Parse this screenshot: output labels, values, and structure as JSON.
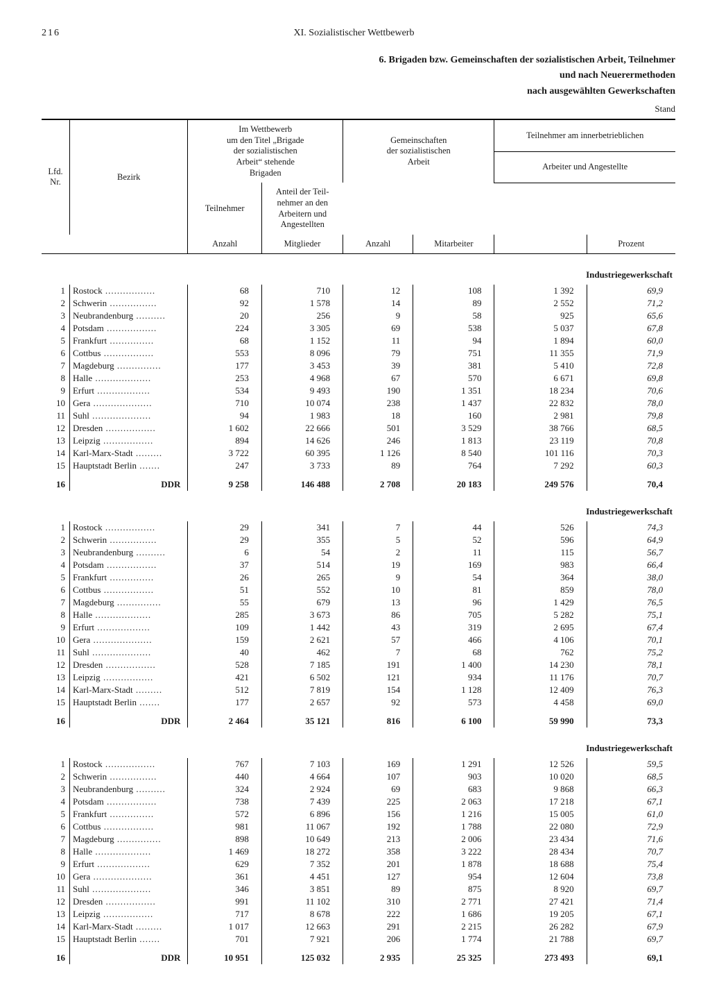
{
  "page_number": "216",
  "chapter": "XI. Sozialistischer Wettbewerb",
  "title_lines": [
    "6. Brigaden bzw. Gemeinschaften der sozialistischen Arbeit, Teilnehmer",
    "und nach Neuerermethoden",
    "nach ausgewählten Gewerkschaften"
  ],
  "stand_label": "Stand",
  "headers": {
    "lfd_nr": "Lfd.\nNr.",
    "bezirk": "Bezirk",
    "wettbewerb": "Im Wettbewerb\num den Titel „Brigade\nder sozialistischen\nArbeit“ stehende\nBrigaden",
    "gemeinschaften": "Gemeinschaften\nder sozialistischen\nArbeit",
    "teilnehmer_top": "Teilnehmer am innerbetrieblichen",
    "arb_ang": "Arbeiter und Angestellte",
    "teilnehmer": "Teilnehmer",
    "anteil": "Anteil der Teil-\nnehmer an den\nArbeitern und\nAngestellten",
    "anzahl": "Anzahl",
    "mitglieder": "Mitglieder",
    "mitarbeiter": "Mitarbeiter",
    "prozent": "Prozent"
  },
  "section_label": "Industriegewerkschaft",
  "ddr_label": "DDR",
  "bezirke": [
    "Rostock",
    "Schwerin",
    "Neubrandenburg",
    "Potsdam",
    "Frankfurt",
    "Cottbus",
    "Magdeburg",
    "Halle",
    "Erfurt",
    "Gera",
    "Suhl",
    "Dresden",
    "Leipzig",
    "Karl-Marx-Stadt",
    "Hauptstadt Berlin"
  ],
  "sections": [
    {
      "rows": [
        [
          "68",
          "710",
          "12",
          "108",
          "1 392",
          "69,9"
        ],
        [
          "92",
          "1 578",
          "14",
          "89",
          "2 552",
          "71,2"
        ],
        [
          "20",
          "256",
          "9",
          "58",
          "925",
          "65,6"
        ],
        [
          "224",
          "3 305",
          "69",
          "538",
          "5 037",
          "67,8"
        ],
        [
          "68",
          "1 152",
          "11",
          "94",
          "1 894",
          "60,0"
        ],
        [
          "553",
          "8 096",
          "79",
          "751",
          "11 355",
          "71,9"
        ],
        [
          "177",
          "3 453",
          "39",
          "381",
          "5 410",
          "72,8"
        ],
        [
          "253",
          "4 968",
          "67",
          "570",
          "6 671",
          "69,8"
        ],
        [
          "534",
          "9 493",
          "190",
          "1 351",
          "18 234",
          "70,6"
        ],
        [
          "710",
          "10 074",
          "238",
          "1 437",
          "22 832",
          "78,0"
        ],
        [
          "94",
          "1 983",
          "18",
          "160",
          "2 981",
          "79,8"
        ],
        [
          "1 602",
          "22 666",
          "501",
          "3 529",
          "38 766",
          "68,5"
        ],
        [
          "894",
          "14 626",
          "246",
          "1 813",
          "23 119",
          "70,8"
        ],
        [
          "3 722",
          "60 395",
          "1 126",
          "8 540",
          "101 116",
          "70,3"
        ],
        [
          "247",
          "3 733",
          "89",
          "764",
          "7 292",
          "60,3"
        ]
      ],
      "ddr": [
        "9 258",
        "146 488",
        "2 708",
        "20 183",
        "249 576",
        "70,4"
      ]
    },
    {
      "rows": [
        [
          "29",
          "341",
          "7",
          "44",
          "526",
          "74,3"
        ],
        [
          "29",
          "355",
          "5",
          "52",
          "596",
          "64,9"
        ],
        [
          "6",
          "54",
          "2",
          "11",
          "115",
          "56,7"
        ],
        [
          "37",
          "514",
          "19",
          "169",
          "983",
          "66,4"
        ],
        [
          "26",
          "265",
          "9",
          "54",
          "364",
          "38,0"
        ],
        [
          "51",
          "552",
          "10",
          "81",
          "859",
          "78,0"
        ],
        [
          "55",
          "679",
          "13",
          "96",
          "1 429",
          "76,5"
        ],
        [
          "285",
          "3 673",
          "86",
          "705",
          "5 282",
          "75,1"
        ],
        [
          "109",
          "1 442",
          "43",
          "319",
          "2 695",
          "67,4"
        ],
        [
          "159",
          "2 621",
          "57",
          "466",
          "4 106",
          "70,1"
        ],
        [
          "40",
          "462",
          "7",
          "68",
          "762",
          "75,2"
        ],
        [
          "528",
          "7 185",
          "191",
          "1 400",
          "14 230",
          "78,1"
        ],
        [
          "421",
          "6 502",
          "121",
          "934",
          "11 176",
          "70,7"
        ],
        [
          "512",
          "7 819",
          "154",
          "1 128",
          "12 409",
          "76,3"
        ],
        [
          "177",
          "2 657",
          "92",
          "573",
          "4 458",
          "69,0"
        ]
      ],
      "ddr": [
        "2 464",
        "35 121",
        "816",
        "6 100",
        "59 990",
        "73,3"
      ]
    },
    {
      "rows": [
        [
          "767",
          "7 103",
          "169",
          "1 291",
          "12 526",
          "59,5"
        ],
        [
          "440",
          "4 664",
          "107",
          "903",
          "10 020",
          "68,5"
        ],
        [
          "324",
          "2 924",
          "69",
          "683",
          "9 868",
          "66,3"
        ],
        [
          "738",
          "7 439",
          "225",
          "2 063",
          "17 218",
          "67,1"
        ],
        [
          "572",
          "6 896",
          "156",
          "1 216",
          "15 005",
          "61,0"
        ],
        [
          "981",
          "11 067",
          "192",
          "1 788",
          "22 080",
          "72,9"
        ],
        [
          "898",
          "10 649",
          "213",
          "2 006",
          "23 434",
          "71,6"
        ],
        [
          "1 469",
          "18 272",
          "358",
          "3 222",
          "28 434",
          "70,7"
        ],
        [
          "629",
          "7 352",
          "201",
          "1 878",
          "18 688",
          "75,4"
        ],
        [
          "361",
          "4 451",
          "127",
          "954",
          "12 604",
          "73,8"
        ],
        [
          "346",
          "3 851",
          "89",
          "875",
          "8 920",
          "69,7"
        ],
        [
          "991",
          "11 102",
          "310",
          "2 771",
          "27 421",
          "71,4"
        ],
        [
          "717",
          "8 678",
          "222",
          "1 686",
          "19 205",
          "67,1"
        ],
        [
          "1 017",
          "12 663",
          "291",
          "2 215",
          "26 282",
          "67,9"
        ],
        [
          "701",
          "7 921",
          "206",
          "1 774",
          "21 788",
          "69,7"
        ]
      ],
      "ddr": [
        "10 951",
        "125 032",
        "2 935",
        "25 325",
        "273 493",
        "69,1"
      ]
    }
  ],
  "style": {
    "font_family": "Times New Roman, serif",
    "background": "#ffffff",
    "text_color": "#1a1a1a",
    "rule_thick": 2,
    "rule_thin": 1
  }
}
